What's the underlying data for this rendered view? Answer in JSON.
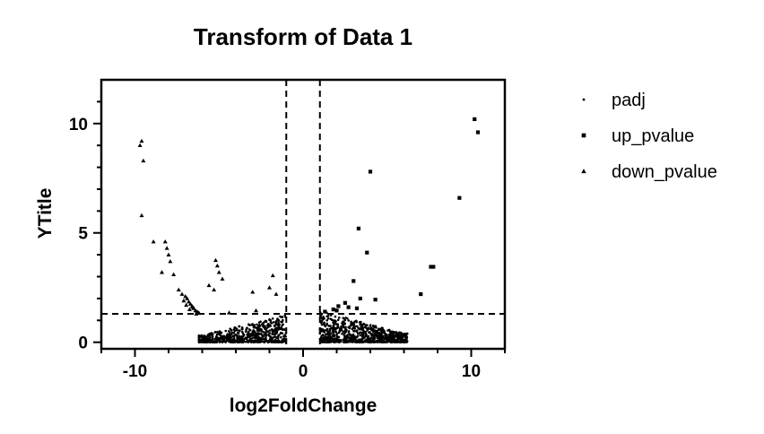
{
  "chart_data": {
    "type": "scatter",
    "title": "Transform of Data 1",
    "xlabel": "log2FoldChange",
    "ylabel": "YTitle",
    "xlim": [
      -12,
      12
    ],
    "ylim": [
      -0.3,
      12
    ],
    "xticks": [
      -10,
      0,
      10
    ],
    "yticks": [
      0,
      5,
      10
    ],
    "thresholds": {
      "x": [
        -1,
        1
      ],
      "y": [
        1.3
      ]
    },
    "legend_position": "right",
    "series": [
      {
        "name": "padj",
        "marker": "dot",
        "clusters": [
          {
            "x_min": -6.2,
            "x_max": -1.0,
            "y_max": 1.25,
            "count": 640
          },
          {
            "x_min": 1.0,
            "x_max": 6.2,
            "y_max": 1.45,
            "count": 760
          }
        ],
        "points": []
      },
      {
        "name": "up_pvalue",
        "marker": "square",
        "points": [
          [
            10.2,
            10.2
          ],
          [
            10.4,
            9.6
          ],
          [
            9.3,
            6.6
          ],
          [
            4.0,
            7.8
          ],
          [
            3.3,
            5.2
          ],
          [
            3.8,
            4.1
          ],
          [
            7.6,
            3.45
          ],
          [
            7.75,
            3.45
          ],
          [
            3.0,
            2.8
          ],
          [
            7.0,
            2.2
          ],
          [
            3.4,
            2.0
          ],
          [
            4.3,
            1.95
          ],
          [
            2.5,
            1.8
          ],
          [
            2.1,
            1.65
          ],
          [
            2.7,
            1.6
          ],
          [
            3.2,
            1.55
          ],
          [
            1.8,
            1.5
          ],
          [
            2.0,
            1.45
          ],
          [
            1.3,
            1.4
          ]
        ]
      },
      {
        "name": "down_pvalue",
        "marker": "triangle",
        "points": [
          [
            -9.6,
            9.2
          ],
          [
            -9.7,
            9.0
          ],
          [
            -9.5,
            8.3
          ],
          [
            -9.6,
            5.8
          ],
          [
            -8.9,
            4.6
          ],
          [
            -8.2,
            4.6
          ],
          [
            -8.1,
            4.3
          ],
          [
            -8.0,
            4.0
          ],
          [
            -7.9,
            3.7
          ],
          [
            -8.4,
            3.2
          ],
          [
            -7.7,
            3.1
          ],
          [
            -5.2,
            3.75
          ],
          [
            -5.1,
            3.5
          ],
          [
            -5.0,
            3.2
          ],
          [
            -4.8,
            2.9
          ],
          [
            -5.6,
            2.6
          ],
          [
            -5.3,
            2.4
          ],
          [
            -1.8,
            3.05
          ],
          [
            -3.0,
            2.3
          ],
          [
            -2.0,
            2.5
          ],
          [
            -1.6,
            2.2
          ],
          [
            -7.4,
            2.4
          ],
          [
            -7.2,
            2.2
          ],
          [
            -7.0,
            2.1
          ],
          [
            -6.9,
            2.0
          ],
          [
            -6.8,
            1.85
          ],
          [
            -6.7,
            1.75
          ],
          [
            -6.6,
            1.65
          ],
          [
            -6.5,
            1.55
          ],
          [
            -6.4,
            1.45
          ],
          [
            -6.3,
            1.4
          ],
          [
            -6.2,
            1.35
          ],
          [
            -7.1,
            1.9
          ],
          [
            -6.95,
            1.7
          ],
          [
            -6.75,
            1.5
          ],
          [
            -6.55,
            1.6
          ],
          [
            -6.35,
            1.3
          ],
          [
            -2.8,
            1.45
          ],
          [
            -4.4,
            1.35
          ]
        ]
      }
    ]
  }
}
